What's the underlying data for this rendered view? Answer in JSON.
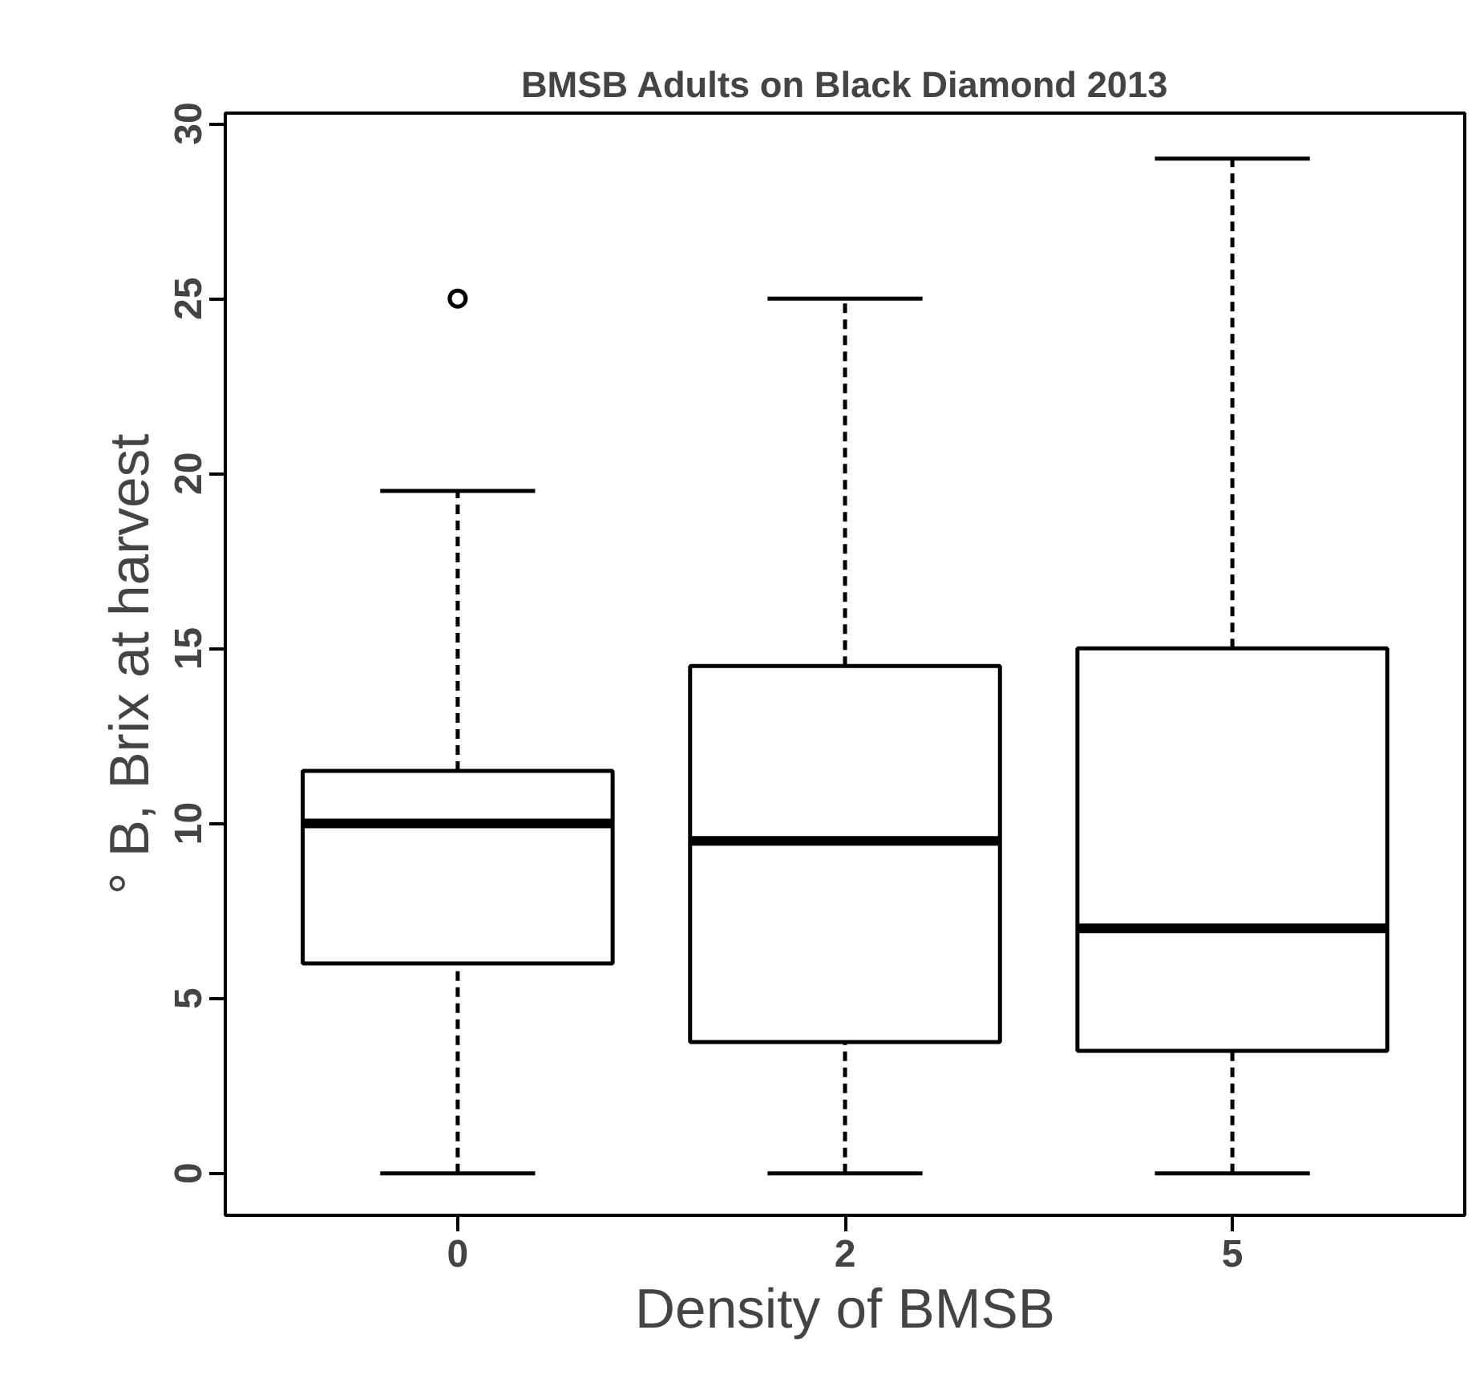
{
  "chart_data": {
    "type": "box",
    "title": "BMSB Adults on Black Diamond 2013",
    "xlabel": "Density of BMSB",
    "ylabel": "° B, Brix at harvest",
    "categories": [
      "0",
      "2",
      "5"
    ],
    "boxes": [
      {
        "low": 0,
        "q1": 6,
        "median": 10,
        "q3": 11.5,
        "high": 19.5,
        "outliers": [
          25
        ]
      },
      {
        "low": 0,
        "q1": 3.75,
        "median": 9.5,
        "q3": 14.5,
        "high": 25
      },
      {
        "low": 0,
        "q1": 3.5,
        "median": 7,
        "q3": 15,
        "high": 29
      }
    ],
    "ylim": [
      -1.2,
      30.3
    ],
    "yticks": [
      0,
      5,
      10,
      15,
      20,
      25,
      30
    ]
  }
}
